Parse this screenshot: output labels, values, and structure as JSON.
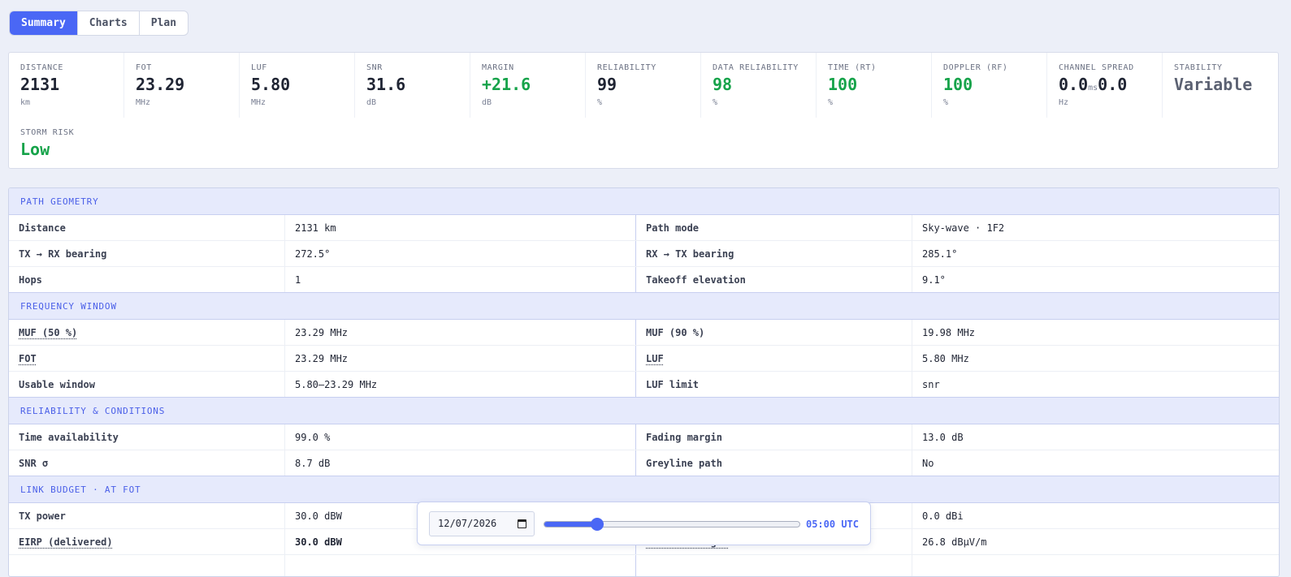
{
  "tabs": [
    "Summary",
    "Charts",
    "Plan"
  ],
  "stats": {
    "distance": {
      "label": "DISTANCE",
      "value": "2131",
      "unit": "km"
    },
    "fot": {
      "label": "FOT",
      "value": "23.29",
      "unit": "MHz"
    },
    "luf": {
      "label": "LUF",
      "value": "5.80",
      "unit": "MHz"
    },
    "snr": {
      "label": "SNR",
      "value": "31.6",
      "unit": "dB"
    },
    "margin": {
      "label": "MARGIN",
      "value": "+21.6",
      "unit": "dB"
    },
    "reliability": {
      "label": "RELIABILITY",
      "value": "99",
      "unit": "%"
    },
    "data_reliability": {
      "label": "DATA RELIABILITY",
      "value": "98",
      "unit": "%"
    },
    "time_rt": {
      "label": "TIME (RT)",
      "value": "100",
      "unit": "%"
    },
    "doppler_rf": {
      "label": "DOPPLER (RF)",
      "value": "100",
      "unit": "%"
    },
    "channel_spread": {
      "label": "CHANNEL SPREAD",
      "value_a": "0.0",
      "value_sep": "ms",
      "value_b": "0.0",
      "unit": "Hz"
    },
    "stability": {
      "label": "STABILITY",
      "value": "Variable"
    },
    "storm_risk": {
      "label": "STORM RISK",
      "value": "Low"
    }
  },
  "sections": {
    "path_geometry": {
      "title": "PATH GEOMETRY",
      "rows": [
        {
          "k1": "Distance",
          "v1": "2131 km",
          "k2": "Path mode",
          "v2": "Sky-wave · 1F2"
        },
        {
          "k1": "TX → RX bearing",
          "v1": "272.5°",
          "k2": "RX → TX bearing",
          "v2": "285.1°"
        },
        {
          "k1": "Hops",
          "v1": "1",
          "k2": "Takeoff elevation",
          "v2": "9.1°"
        }
      ]
    },
    "frequency_window": {
      "title": "FREQUENCY WINDOW",
      "rows": [
        {
          "k1": "MUF (50 %)",
          "v1": "23.29 MHz",
          "k2": "MUF (90 %)",
          "v2": "19.98 MHz"
        },
        {
          "k1": "FOT",
          "v1": "23.29 MHz",
          "k2": "LUF",
          "v2": "5.80 MHz"
        },
        {
          "k1": "Usable window",
          "v1": "5.80–23.29 MHz",
          "k2": "LUF limit",
          "v2": "snr"
        }
      ]
    },
    "reliability": {
      "title": "RELIABILITY & CONDITIONS",
      "rows": [
        {
          "k1": "Time availability",
          "v1": "99.0 %",
          "k2": "Fading margin",
          "v2": "13.0 dB"
        },
        {
          "k1": "SNR σ",
          "v1": "8.7 dB",
          "k2": "Greyline path",
          "v2": "No"
        }
      ]
    },
    "link_budget": {
      "title": "LINK BUDGET · AT FOT",
      "rows": [
        {
          "k1": "TX power",
          "v1": "30.0 dBW",
          "k2": "",
          "v2": "0.0 dBi"
        },
        {
          "k1": "EIRP (delivered)",
          "v1": "30.0 dBW",
          "k2": "Field strength",
          "v2": "26.8 dBμV/m"
        }
      ]
    }
  },
  "time_control": {
    "date": "12/07/2026",
    "time_label": "05:00 UTC",
    "slider_fraction": 0.2083,
    "accent_color": "#4a67f5"
  }
}
